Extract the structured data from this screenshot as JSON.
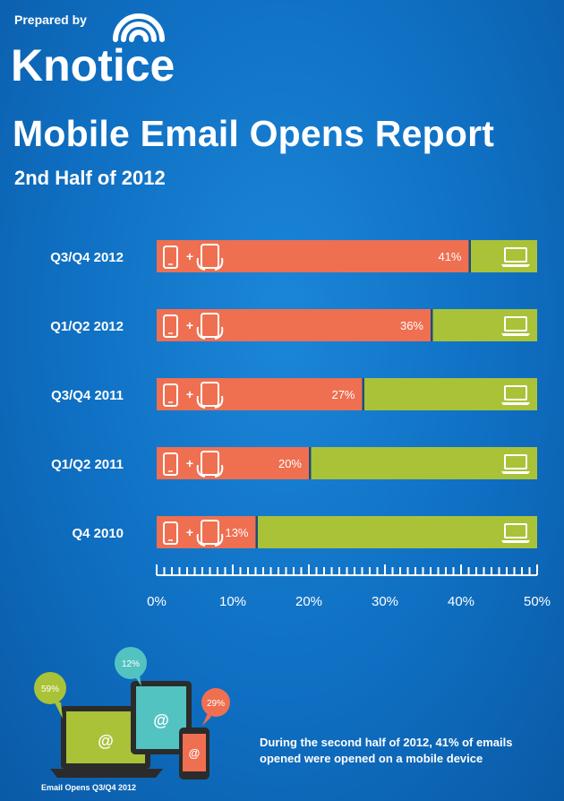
{
  "header": {
    "prepared_by": "Prepared by",
    "brand": "Knotice",
    "title": "Mobile Email Opens Report",
    "subtitle": "2nd Half of 2012"
  },
  "colors": {
    "mobile": "#ef6f51",
    "desktop": "#a9c238",
    "background": "#1177c9"
  },
  "chart_data": {
    "type": "bar",
    "orientation": "horizontal",
    "stacked": true,
    "categories": [
      "Q3/Q4 2012",
      "Q1/Q2 2012",
      "Q3/Q4 2011",
      "Q1/Q2 2011",
      "Q4 2010"
    ],
    "series": [
      {
        "values": [
          41,
          36,
          27,
          20,
          13
        ],
        "labels": [
          "41%",
          "36%",
          "27%",
          "20%",
          "13%"
        ],
        "icon": "phone-plus-tablet-icon",
        "color": "#ef6f51"
      },
      {
        "values": [
          9,
          14,
          23,
          30,
          37
        ],
        "icon": "laptop-icon",
        "color": "#a9c238"
      }
    ],
    "xlim": [
      0,
      50
    ],
    "xticks": [
      "0%",
      "10%",
      "20%",
      "30%",
      "40%",
      "50%"
    ],
    "grid": false,
    "legend": "none"
  },
  "illustration": {
    "bubbles": [
      {
        "label": "59%",
        "color": "#a9c238",
        "icon": "laptop-icon"
      },
      {
        "label": "12%",
        "color": "#53c3c1",
        "icon": "tablet-icon"
      },
      {
        "label": "29%",
        "color": "#ef6f51",
        "icon": "phone-icon"
      }
    ],
    "at_symbol": "@",
    "caption": "Email Opens Q3/Q4 2012"
  },
  "footer": {
    "summary": "During the second half of 2012, 41% of emails opened were opened on a mobile device"
  }
}
